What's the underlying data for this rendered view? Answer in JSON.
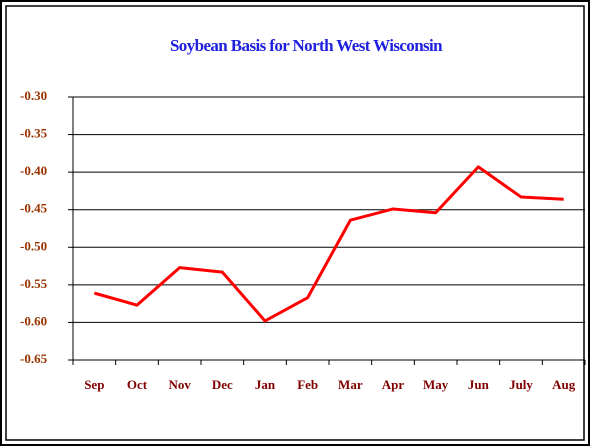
{
  "chart_data": {
    "type": "line",
    "title": "Soybean Basis for North West Wisconsin",
    "categories": [
      "Sep",
      "Oct",
      "Nov",
      "Dec",
      "Jan",
      "Feb",
      "Mar",
      "Apr",
      "May",
      "Jun",
      "July",
      "Aug"
    ],
    "series": [
      {
        "name": "Soybean Basis",
        "color": "#ff0000",
        "values": [
          -0.561,
          -0.577,
          -0.527,
          -0.533,
          -0.598,
          -0.567,
          -0.464,
          -0.449,
          -0.454,
          -0.393,
          -0.433,
          -0.436
        ]
      }
    ],
    "ylim": [
      -0.65,
      -0.3
    ],
    "yticks": [
      {
        "value": -0.3,
        "label": "-0.30"
      },
      -0.35,
      {
        "value": -0.4,
        "label": "-0.40"
      },
      -0.45,
      {
        "value": -0.5,
        "label": "-0.50"
      },
      -0.55,
      {
        "value": -0.6,
        "label": "-0.60"
      },
      -0.65
    ],
    "grid": true
  }
}
